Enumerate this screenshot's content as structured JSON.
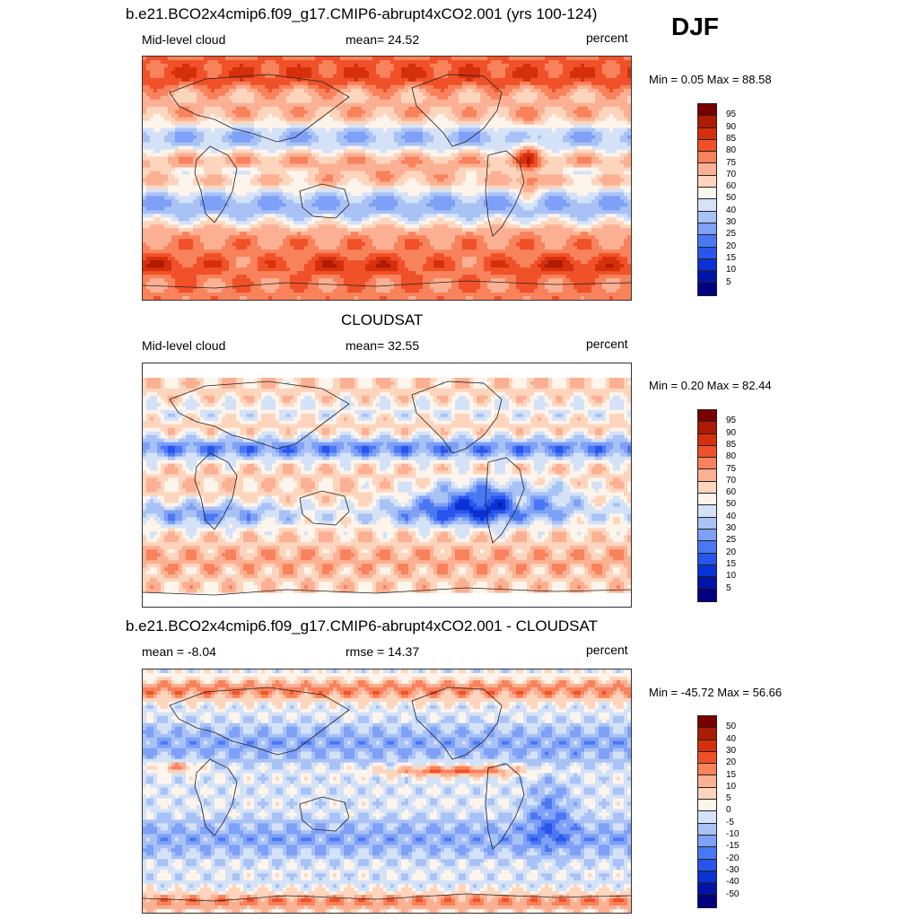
{
  "season": "DJF",
  "panels": [
    {
      "title": "b.e21.BCO2x4cmip6.f09_g17.CMIP6-abrupt4xCO2.001 (yrs 100-124)",
      "left_label": "Mid-level cloud",
      "center_label": "mean=  24.52",
      "right_label": "percent",
      "minmax": "Min =   0.05 Max =  88.58",
      "colorbar_labels": [
        "95",
        "90",
        "85",
        "80",
        "75",
        "70",
        "60",
        "50",
        "40",
        "30",
        "25",
        "20",
        "15",
        "10",
        "5"
      ]
    },
    {
      "title": "CLOUDSAT",
      "left_label": "Mid-level cloud",
      "center_label": "mean=  32.55",
      "right_label": "percent",
      "minmax": "Min =   0.20 Max =  82.44",
      "colorbar_labels": [
        "95",
        "90",
        "85",
        "80",
        "75",
        "70",
        "60",
        "50",
        "40",
        "30",
        "25",
        "20",
        "15",
        "10",
        "5"
      ]
    },
    {
      "title": "b.e21.BCO2x4cmip6.f09_g17.CMIP6-abrupt4xCO2.001 - CLOUDSAT",
      "left_label": "mean =  -8.04",
      "center_label": "rmse =  14.37",
      "right_label": "percent",
      "minmax": "Min = -45.72 Max =  56.66",
      "colorbar_labels": [
        "50",
        "40",
        "30",
        "20",
        "15",
        "10",
        "5",
        "0",
        "-5",
        "-10",
        "-15",
        "-20",
        "-30",
        "-40",
        "-50"
      ]
    }
  ],
  "chart_data": [
    {
      "type": "heatmap",
      "title": "b.e21.BCO2x4cmip6.f09_g17.CMIP6-abrupt4xCO2.001 (yrs 100-124)",
      "variable": "Mid-level cloud",
      "units": "percent",
      "mean": 24.52,
      "min": 0.05,
      "max": 88.58,
      "contour_levels": [
        5,
        10,
        15,
        20,
        25,
        30,
        40,
        50,
        60,
        70,
        75,
        80,
        85,
        90,
        95
      ]
    },
    {
      "type": "heatmap",
      "title": "CLOUDSAT",
      "variable": "Mid-level cloud",
      "units": "percent",
      "mean": 32.55,
      "min": 0.2,
      "max": 82.44,
      "contour_levels": [
        5,
        10,
        15,
        20,
        25,
        30,
        40,
        50,
        60,
        70,
        75,
        80,
        85,
        90,
        95
      ]
    },
    {
      "type": "heatmap",
      "title": "b.e21.BCO2x4cmip6.f09_g17.CMIP6-abrupt4xCO2.001 - CLOUDSAT",
      "units": "percent",
      "mean": -8.04,
      "rmse": 14.37,
      "min": -45.72,
      "max": 56.66,
      "contour_levels": [
        -50,
        -40,
        -30,
        -20,
        -15,
        -10,
        -5,
        0,
        5,
        10,
        15,
        20,
        30,
        40,
        50
      ]
    }
  ],
  "colors": {
    "palette_bottom_to_top": [
      "#000080",
      "#0014a8",
      "#0a32d2",
      "#2a55ec",
      "#4a78f4",
      "#7ea0f6",
      "#a9c2f6",
      "#d4e2f8",
      "#fdf4ec",
      "#fdd5bd",
      "#fcb093",
      "#f8825b",
      "#f05128",
      "#d52f0c",
      "#ac1c05",
      "#780000"
    ]
  }
}
